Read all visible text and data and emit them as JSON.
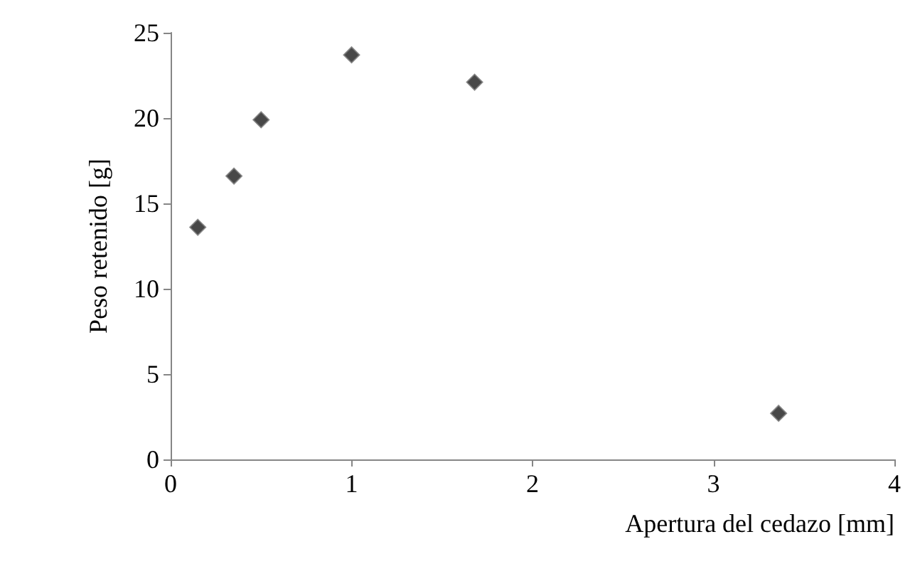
{
  "chart_data": {
    "type": "scatter",
    "xlabel": "Apertura del cedazo [mm]",
    "ylabel": "Peso retenido [g]",
    "x": [
      0.15,
      0.35,
      0.5,
      1.0,
      1.68,
      3.36
    ],
    "values": [
      13.6,
      16.6,
      19.9,
      23.7,
      22.1,
      2.7
    ],
    "color": "#1a1a1a",
    "marker": "diamond",
    "grid": false,
    "xlim": [
      0,
      4
    ],
    "xticks": [
      0,
      1,
      2,
      3,
      4
    ],
    "ylim": [
      0,
      25
    ],
    "yticks": [
      0,
      5,
      10,
      15,
      20,
      25
    ]
  }
}
